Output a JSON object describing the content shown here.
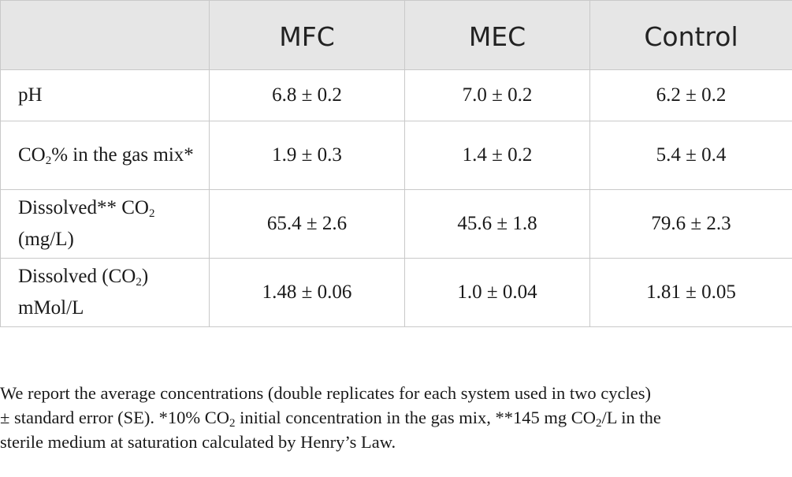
{
  "table": {
    "header": {
      "blank": "",
      "mfc": "MFC",
      "mec": "MEC",
      "control": "Control"
    },
    "rows": [
      {
        "param_a": "pH",
        "mfc": "6.8 ± 0.2",
        "mec": "7.0 ± 0.2",
        "control": "6.2 ± 0.2"
      },
      {
        "param_a": "CO",
        "param_sub": "2",
        "param_b": "% in the gas mix*",
        "mfc": "1.9 ± 0.3",
        "mec": "1.4 ± 0.2",
        "control": "5.4 ± 0.4"
      },
      {
        "param_a": "Dissolved** CO",
        "param_sub": "2",
        "param_b": " (mg/L)",
        "mfc": "65.4 ± 2.6",
        "mec": "45.6 ± 1.8",
        "control": "79.6 ± 2.3"
      },
      {
        "param_a": "Dissolved (CO",
        "param_sub": "2",
        "param_b": ") mMol/L",
        "mfc": "1.48 ± 0.06",
        "mec": "1.0 ± 0.04",
        "control": "1.81 ± 0.05"
      }
    ]
  },
  "footnote": {
    "line1": "We report the average concentrations (double replicates for each system used in two cycles)",
    "line2_a": "± standard error (SE). *10% CO",
    "line2_sub1": "2",
    "line2_b": " initial concentration in the gas mix, **145 mg CO",
    "line2_sub2": "2",
    "line2_c": "/L in the",
    "line3": "sterile medium at saturation calculated by Henry’s Law."
  }
}
